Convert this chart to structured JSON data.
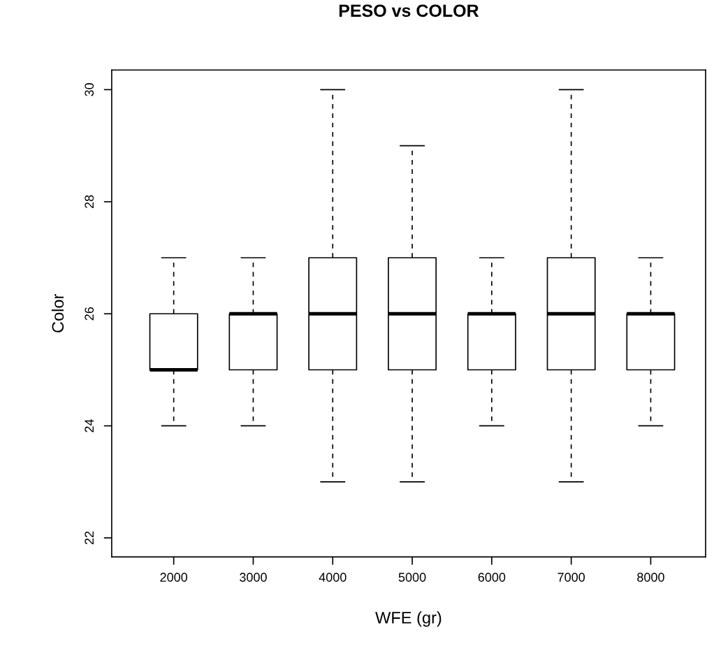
{
  "chart_data": {
    "type": "box",
    "title": "PESO vs COLOR",
    "xlabel": "WFE (gr)",
    "ylabel": "Color",
    "categories": [
      "2000",
      "3000",
      "4000",
      "5000",
      "6000",
      "7000",
      "8000"
    ],
    "boxes": [
      {
        "low": 24,
        "q1": 25,
        "median": 25,
        "q3": 26,
        "high": 27
      },
      {
        "low": 24,
        "q1": 25,
        "median": 26,
        "q3": 26,
        "high": 27
      },
      {
        "low": 23,
        "q1": 25,
        "median": 26,
        "q3": 27,
        "high": 30
      },
      {
        "low": 23,
        "q1": 25,
        "median": 26,
        "q3": 27,
        "high": 29
      },
      {
        "low": 24,
        "q1": 25,
        "median": 26,
        "q3": 26,
        "high": 27
      },
      {
        "low": 23,
        "q1": 25,
        "median": 26,
        "q3": 27,
        "high": 30
      },
      {
        "low": 24,
        "q1": 25,
        "median": 26,
        "q3": 26,
        "high": 27
      }
    ],
    "ylim": [
      21.66,
      30.35
    ],
    "yticks": [
      22,
      24,
      26,
      28,
      30
    ],
    "grid": false,
    "legend": false
  }
}
